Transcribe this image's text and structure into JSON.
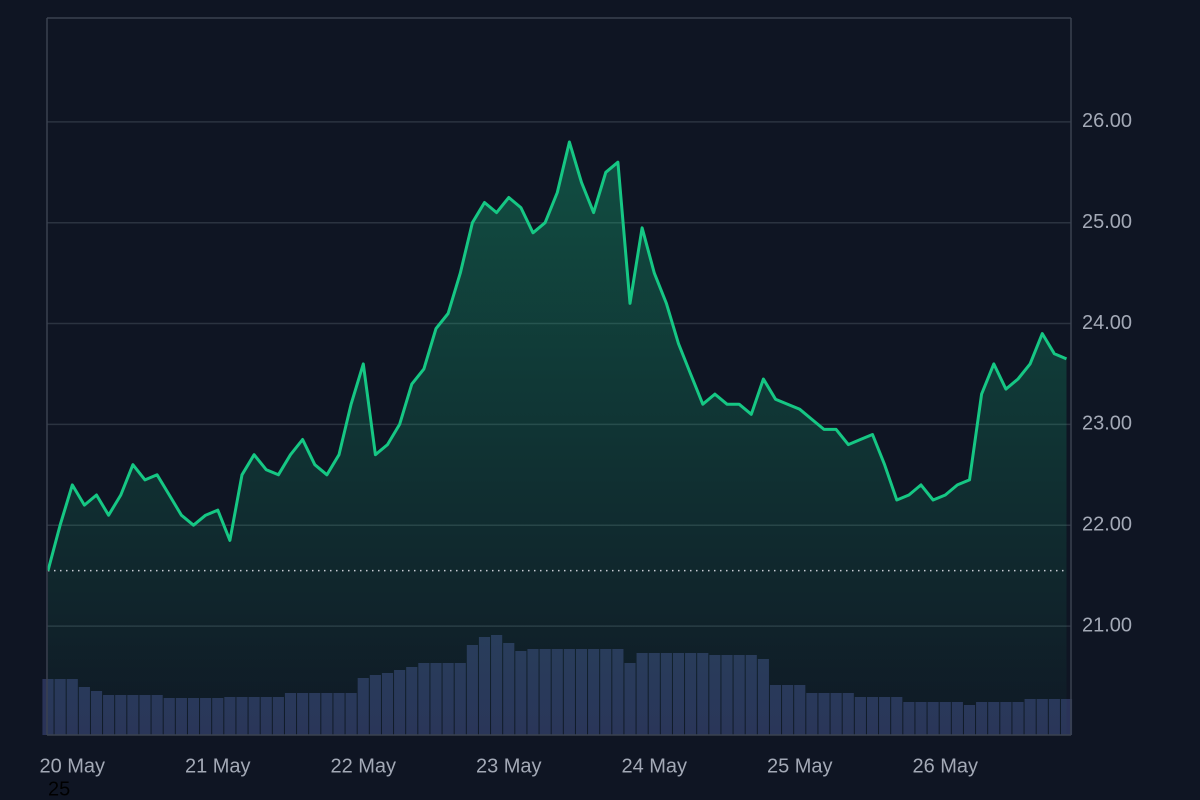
{
  "chart_data": {
    "type": "line",
    "categories": [
      null,
      null,
      "20 May",
      null,
      null,
      null,
      null,
      null,
      null,
      null,
      null,
      null,
      null,
      null,
      "21 May",
      null,
      null,
      null,
      null,
      null,
      null,
      null,
      null,
      null,
      null,
      null,
      "22 May",
      null,
      null,
      null,
      null,
      null,
      null,
      null,
      null,
      null,
      null,
      null,
      "23 May",
      null,
      null,
      null,
      null,
      null,
      null,
      null,
      null,
      null,
      null,
      null,
      "24 May",
      null,
      null,
      null,
      null,
      null,
      null,
      null,
      null,
      null,
      null,
      null,
      "25 May",
      null,
      null,
      null,
      null,
      null,
      null,
      null,
      null,
      null,
      null,
      null,
      "26 May",
      null,
      null,
      null,
      null,
      null,
      null,
      null,
      null,
      null,
      null
    ],
    "series": [
      {
        "color": "#16c784",
        "values": [
          21.55,
          22.0,
          22.4,
          22.2,
          22.3,
          22.1,
          22.3,
          22.6,
          22.45,
          22.5,
          22.3,
          22.1,
          22.0,
          22.1,
          22.15,
          21.85,
          22.5,
          22.7,
          22.55,
          22.5,
          22.7,
          22.85,
          22.6,
          22.5,
          22.7,
          23.2,
          23.6,
          22.7,
          22.8,
          23.0,
          23.4,
          23.55,
          23.95,
          24.1,
          24.5,
          25.0,
          25.2,
          25.1,
          25.25,
          25.15,
          24.9,
          25.0,
          25.3,
          25.8,
          25.4,
          25.1,
          25.5,
          25.6,
          24.2,
          24.95,
          24.5,
          24.2,
          23.8,
          23.5,
          23.2,
          23.3,
          23.2,
          23.2,
          23.1,
          23.45,
          23.25,
          23.2,
          23.15,
          23.05,
          22.95,
          22.95,
          22.8,
          22.85,
          22.9,
          22.6,
          22.25,
          22.3,
          22.4,
          22.25,
          22.3,
          22.4,
          22.45,
          23.3,
          23.6,
          23.35,
          23.45,
          23.6,
          23.9,
          23.7,
          23.65
        ]
      },
      {
        "type": "bar",
        "axis": "y2",
        "color": "#2a3358",
        "values": [
          56,
          56,
          56,
          48,
          44,
          40,
          40,
          40,
          40,
          40,
          37,
          37,
          37,
          37,
          37,
          38,
          38,
          38,
          38,
          38,
          42,
          42,
          42,
          42,
          42,
          42,
          57,
          60,
          62,
          65,
          68,
          72,
          72,
          72,
          72,
          90,
          98,
          100,
          92,
          84,
          86,
          86,
          86,
          86,
          86,
          86,
          86,
          86,
          72,
          82,
          82,
          82,
          82,
          82,
          82,
          80,
          80,
          80,
          80,
          76,
          50,
          50,
          50,
          42,
          42,
          42,
          42,
          38,
          38,
          38,
          38,
          33,
          33,
          33,
          33,
          33,
          30,
          33,
          33,
          33,
          33,
          36,
          36,
          36,
          36
        ]
      }
    ],
    "ylim": [
      19.92,
      27.03
    ],
    "yticks": [
      {
        "value": 21,
        "label": "21.00"
      },
      {
        "value": 22,
        "label": "22.00"
      },
      {
        "value": 23,
        "label": "23.00"
      },
      {
        "value": 24,
        "label": "24.00"
      },
      {
        "value": 25,
        "label": "25.00"
      },
      {
        "value": 26,
        "label": "26.00"
      }
    ],
    "y2lim": [
      0,
      717
    ],
    "grid": true,
    "footnote": "25"
  }
}
